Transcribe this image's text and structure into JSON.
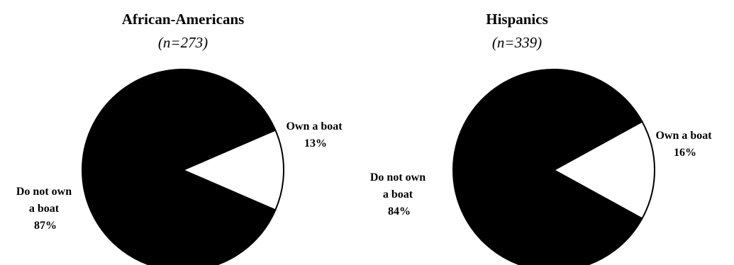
{
  "chart_data": [
    {
      "type": "pie",
      "title": "African-Americans",
      "subtitle": "(n=273)",
      "slices": [
        {
          "label_lines": [
            "Own a boat",
            "13%"
          ],
          "value": 13,
          "color": "#ffffff"
        },
        {
          "label_lines": [
            "Do not own",
            "a boat",
            "87%"
          ],
          "value": 87,
          "color": "#000000"
        }
      ]
    },
    {
      "type": "pie",
      "title": "Hispanics",
      "subtitle": "(n=339)",
      "slices": [
        {
          "label_lines": [
            "Own a boat",
            "16%"
          ],
          "value": 16,
          "color": "#ffffff"
        },
        {
          "label_lines": [
            "Do not own",
            "a boat",
            "84%"
          ],
          "value": 84,
          "color": "#000000"
        }
      ]
    }
  ]
}
